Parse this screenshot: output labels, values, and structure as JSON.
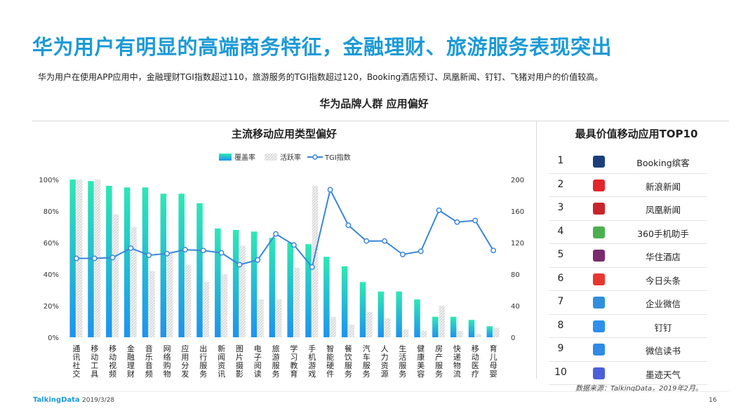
{
  "title": "华为用户有明显的高端商务特征，金融理财、旅游服务表现突出",
  "subtitle": "华为用户在使用APP应用中，金融理财TGI指数超过110，旅游服务的TGI指数超过120，Booking酒店预订、凤凰新闻、钉钉、飞猪对用户的价值较高。",
  "section_title": "华为品牌人群  应用偏好",
  "chart_panel_title": "主流移动应用类型偏好",
  "top10_panel_title": "最具价值移动应用TOP10",
  "colors": {
    "accent": "#1c9ad6",
    "coverage_top": "#2de8b4",
    "coverage_bottom": "#1e93f0",
    "activity": "#dcdcdc",
    "tgi": "#3a86d8"
  },
  "chart_data": {
    "type": "bar",
    "categories": [
      "通讯社交",
      "移动工具",
      "移动视频",
      "金融理财",
      "音乐音频",
      "网络购物",
      "应用分发",
      "出行服务",
      "新闻资讯",
      "图片摄影",
      "电子阅读",
      "旅游服务",
      "学习教育",
      "手机游戏",
      "智能硬件",
      "餐饮服务",
      "汽车服务",
      "人力资源",
      "生活服务",
      "健康美容",
      "房产服务",
      "快递物流",
      "移动医疗",
      "育儿母婴"
    ],
    "series": [
      {
        "name": "覆盖率",
        "type": "bar",
        "axis": "left",
        "values": [
          100,
          99,
          96,
          95,
          95,
          91,
          91,
          85,
          69,
          68,
          67,
          63,
          60,
          59,
          51,
          45,
          35,
          29,
          29,
          24,
          13,
          13,
          11,
          7
        ]
      },
      {
        "name": "活跃率",
        "type": "bar",
        "axis": "left",
        "values": [
          100,
          100,
          78,
          70,
          42,
          53,
          46,
          35,
          40,
          58,
          24,
          24,
          44,
          96,
          13,
          8,
          16,
          12,
          5,
          4,
          20,
          4,
          2,
          6
        ]
      },
      {
        "name": "TGI指数",
        "type": "line",
        "axis": "right",
        "values": [
          100,
          100,
          101,
          113,
          104,
          106,
          111,
          110,
          107,
          92,
          98,
          131,
          117,
          89,
          187,
          142,
          122,
          122,
          105,
          109,
          161,
          146,
          148,
          110
        ]
      }
    ],
    "y_left": {
      "ticks": [
        "0%",
        "20%",
        "40%",
        "60%",
        "80%",
        "100%"
      ],
      "min": 0,
      "max": 100
    },
    "y_right": {
      "ticks": [
        "0",
        "40",
        "80",
        "120",
        "160",
        "200"
      ],
      "min": 0,
      "max": 200
    },
    "legend_position": "top-center",
    "grid": false
  },
  "top10": [
    {
      "rank": "1",
      "name": "Booking缤客",
      "icon": "booking-icon",
      "color": "#1b3f7a"
    },
    {
      "rank": "2",
      "name": "新浪新闻",
      "icon": "sina-news-icon",
      "color": "#e3262c"
    },
    {
      "rank": "3",
      "name": "凤凰新闻",
      "icon": "ifeng-news-icon",
      "color": "#c8252c"
    },
    {
      "rank": "4",
      "name": "360手机助手",
      "icon": "360-assistant-icon",
      "color": "#4caf50"
    },
    {
      "rank": "5",
      "name": "华住酒店",
      "icon": "huazhu-hotel-icon",
      "color": "#7a2a6e"
    },
    {
      "rank": "6",
      "name": "今日头条",
      "icon": "toutiao-icon",
      "color": "#e8372f"
    },
    {
      "rank": "7",
      "name": "企业微信",
      "icon": "wecom-icon",
      "color": "#2f8fdc"
    },
    {
      "rank": "8",
      "name": "钉钉",
      "icon": "dingtalk-icon",
      "color": "#2d8ff0"
    },
    {
      "rank": "9",
      "name": "微信读书",
      "icon": "weread-icon",
      "color": "#2f8ae8"
    },
    {
      "rank": "10",
      "name": "墨迹天气",
      "icon": "moji-weather-icon",
      "color": "#4a5fd8"
    }
  ],
  "source": "数据来源：TalkingData，2019年2月。",
  "footer": {
    "brand": "TalkingData",
    "date": "2019/3/28",
    "page": "16"
  }
}
